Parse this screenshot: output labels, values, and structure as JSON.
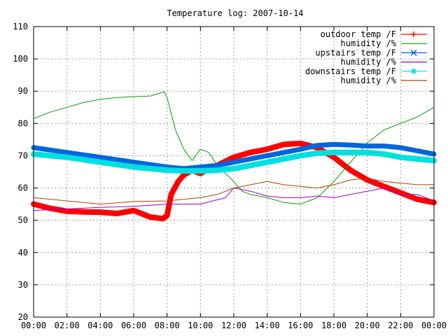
{
  "chart_data": {
    "type": "line",
    "title": "Temperature log: 2007-10-14",
    "xlabel": "",
    "ylabel": "",
    "ylim": [
      20,
      110
    ],
    "yticks": [
      20,
      30,
      40,
      50,
      60,
      70,
      80,
      90,
      100,
      110
    ],
    "xlim": [
      "00:00",
      "24:00"
    ],
    "xticks": [
      "00:00",
      "02:00",
      "04:00",
      "06:00",
      "08:00",
      "10:00",
      "12:00",
      "14:00",
      "16:00",
      "18:00",
      "20:00",
      "22:00",
      "00:00"
    ],
    "grid": true,
    "legend_position": "top-right",
    "series": [
      {
        "name": "outdoor temp /F",
        "color": "#ff0000",
        "marker": "plus",
        "points": [
          [
            "00:00",
            55
          ],
          [
            "01:00",
            53.7
          ],
          [
            "02:00",
            52.8
          ],
          [
            "03:00",
            52.6
          ],
          [
            "04:00",
            52.5
          ],
          [
            "05:00",
            52.1
          ],
          [
            "06:00",
            53
          ],
          [
            "06:30",
            52
          ],
          [
            "07:00",
            51
          ],
          [
            "07:45",
            50.5
          ],
          [
            "08:00",
            51.5
          ],
          [
            "08:15",
            58
          ],
          [
            "08:40",
            62
          ],
          [
            "09:00",
            64
          ],
          [
            "09:30",
            65.5
          ],
          [
            "10:00",
            64.5
          ],
          [
            "10:30",
            66
          ],
          [
            "11:00",
            67
          ],
          [
            "12:00",
            69.5
          ],
          [
            "13:00",
            71
          ],
          [
            "14:00",
            72
          ],
          [
            "15:00",
            73.5
          ],
          [
            "16:00",
            73.8
          ],
          [
            "17:00",
            72.5
          ],
          [
            "18:00",
            69.5
          ],
          [
            "19:00",
            65.5
          ],
          [
            "20:00",
            62.5
          ],
          [
            "21:00",
            60.5
          ],
          [
            "22:00",
            58.5
          ],
          [
            "23:00",
            56.5
          ],
          [
            "24:00",
            55.5
          ]
        ]
      },
      {
        "name": "humidity /%",
        "color": "#00a000",
        "marker": "none",
        "points": [
          [
            "00:00",
            81.5
          ],
          [
            "01:00",
            83.5
          ],
          [
            "02:00",
            85
          ],
          [
            "03:00",
            86.5
          ],
          [
            "04:00",
            87.5
          ],
          [
            "05:00",
            88
          ],
          [
            "06:00",
            88.3
          ],
          [
            "07:00",
            88.5
          ],
          [
            "07:50",
            89.8
          ],
          [
            "08:00",
            88
          ],
          [
            "08:30",
            78
          ],
          [
            "09:00",
            72
          ],
          [
            "09:30",
            68.5
          ],
          [
            "10:00",
            72
          ],
          [
            "10:30",
            71
          ],
          [
            "11:00",
            67
          ],
          [
            "12:00",
            62
          ],
          [
            "12:30",
            59
          ],
          [
            "13:00",
            58
          ],
          [
            "14:00",
            57
          ],
          [
            "15:00",
            55.5
          ],
          [
            "16:00",
            55
          ],
          [
            "17:00",
            57
          ],
          [
            "18:00",
            62
          ],
          [
            "19:00",
            68
          ],
          [
            "20:00",
            74
          ],
          [
            "21:00",
            78
          ],
          [
            "22:00",
            80
          ],
          [
            "23:00",
            82
          ],
          [
            "24:00",
            85
          ]
        ]
      },
      {
        "name": "upstairs temp /F",
        "color": "#0066dd",
        "marker": "cross",
        "points": [
          [
            "00:00",
            72.5
          ],
          [
            "02:00",
            71
          ],
          [
            "04:00",
            69.5
          ],
          [
            "06:00",
            68
          ],
          [
            "08:00",
            66.5
          ],
          [
            "09:00",
            66
          ],
          [
            "10:00",
            66.5
          ],
          [
            "11:00",
            67
          ],
          [
            "12:00",
            68
          ],
          [
            "14:00",
            70
          ],
          [
            "16:00",
            72
          ],
          [
            "17:00",
            73.2
          ],
          [
            "18:00",
            73.5
          ],
          [
            "19:00",
            73.3
          ],
          [
            "20:00",
            73
          ],
          [
            "21:00",
            73
          ],
          [
            "22:00",
            72.5
          ],
          [
            "23:00",
            71.5
          ],
          [
            "24:00",
            70.5
          ]
        ]
      },
      {
        "name": "humidity /%",
        "color": "#a000c0",
        "marker": "none",
        "points": [
          [
            "00:00",
            53
          ],
          [
            "02:00",
            53.5
          ],
          [
            "04:00",
            54
          ],
          [
            "06:00",
            54.3
          ],
          [
            "08:00",
            55
          ],
          [
            "10:00",
            55
          ],
          [
            "11:30",
            57
          ],
          [
            "12:00",
            60
          ],
          [
            "13:00",
            59
          ],
          [
            "14:00",
            57.5
          ],
          [
            "15:00",
            57
          ],
          [
            "16:00",
            57
          ],
          [
            "17:00",
            57.5
          ],
          [
            "18:00",
            57
          ],
          [
            "19:00",
            58
          ],
          [
            "20:00",
            59
          ],
          [
            "21:00",
            60
          ],
          [
            "22:00",
            58
          ],
          [
            "23:00",
            58
          ],
          [
            "24:00",
            56
          ]
        ]
      },
      {
        "name": "downstairs temp /F",
        "color": "#00e0e0",
        "marker": "star",
        "points": [
          [
            "00:00",
            70.5
          ],
          [
            "02:00",
            69.5
          ],
          [
            "04:00",
            68
          ],
          [
            "06:00",
            66.5
          ],
          [
            "08:00",
            65.5
          ],
          [
            "09:00",
            65.3
          ],
          [
            "10:00",
            65.3
          ],
          [
            "11:00",
            65.5
          ],
          [
            "12:00",
            66
          ],
          [
            "14:00",
            68
          ],
          [
            "16:00",
            70
          ],
          [
            "17:00",
            70.8
          ],
          [
            "18:00",
            71
          ],
          [
            "19:00",
            71
          ],
          [
            "20:00",
            71
          ],
          [
            "21:00",
            70.5
          ],
          [
            "22:00",
            69.5
          ],
          [
            "23:00",
            69
          ],
          [
            "24:00",
            68.5
          ]
        ]
      },
      {
        "name": "humidity /%",
        "color": "#b04000",
        "marker": "none",
        "points": [
          [
            "00:00",
            57
          ],
          [
            "02:00",
            56
          ],
          [
            "04:00",
            55
          ],
          [
            "06:00",
            55.8
          ],
          [
            "08:00",
            56
          ],
          [
            "10:00",
            57
          ],
          [
            "11:00",
            58
          ],
          [
            "12:00",
            60
          ],
          [
            "13:00",
            61
          ],
          [
            "14:00",
            62
          ],
          [
            "15:00",
            61
          ],
          [
            "16:00",
            60.5
          ],
          [
            "17:00",
            60
          ],
          [
            "18:00",
            61
          ],
          [
            "19:00",
            62.5
          ],
          [
            "20:00",
            63
          ],
          [
            "21:00",
            62
          ],
          [
            "22:00",
            61.5
          ],
          [
            "23:00",
            61
          ],
          [
            "24:00",
            61
          ]
        ]
      }
    ]
  }
}
